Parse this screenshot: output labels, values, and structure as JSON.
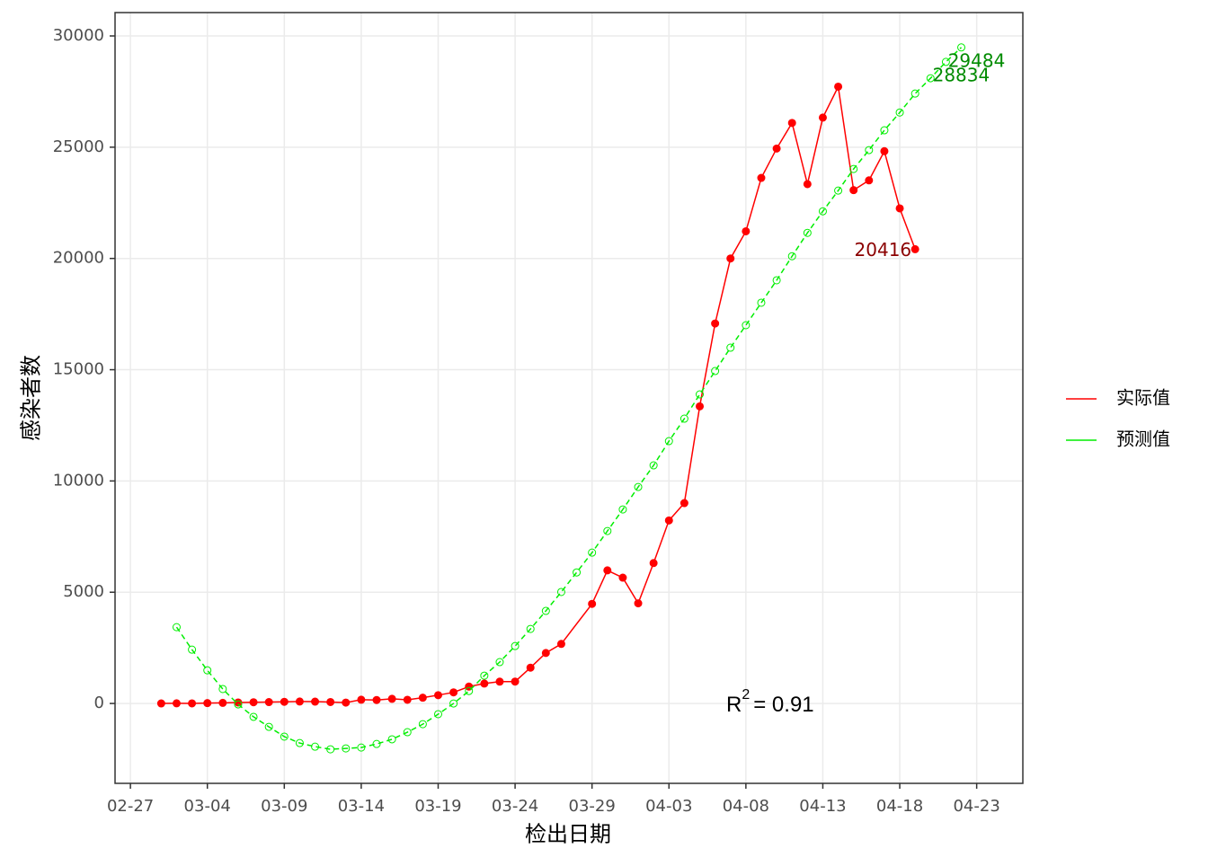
{
  "chart_data": {
    "type": "line",
    "x_label": "检出日期",
    "y_label": "感染者数",
    "xlim": [
      "02-26",
      "04-26"
    ],
    "xticks": [
      "02-27",
      "03-04",
      "03-09",
      "03-14",
      "03-19",
      "03-24",
      "03-29",
      "04-03",
      "04-08",
      "04-13",
      "04-18",
      "04-23"
    ],
    "ylim": [
      -3590,
      31050
    ],
    "yticks": [
      0,
      5000,
      10000,
      15000,
      20000,
      25000,
      30000
    ],
    "grid": true,
    "legend": "right",
    "series": [
      {
        "name": "实际值",
        "color": "#ff0000",
        "label_color": "#8b0000",
        "dashed": false,
        "marker": "filled",
        "x": [
          "03-01",
          "03-02",
          "03-03",
          "03-04",
          "03-05",
          "03-06",
          "03-07",
          "03-08",
          "03-09",
          "03-10",
          "03-11",
          "03-12",
          "03-13",
          "03-14",
          "03-15",
          "03-16",
          "03-17",
          "03-18",
          "03-19",
          "03-20",
          "03-21",
          "03-22",
          "03-23",
          "03-24",
          "03-25",
          "03-26",
          "03-27",
          "03-29",
          "03-30",
          "03-31",
          "04-01",
          "04-02",
          "04-03",
          "04-04",
          "04-05",
          "04-06",
          "04-07",
          "04-08",
          "04-09",
          "04-10",
          "04-11",
          "04-12",
          "04-13",
          "04-14",
          "04-15",
          "04-16",
          "04-17",
          "04-18",
          "04-19"
        ],
        "values": [
          2,
          8,
          5,
          16,
          28,
          45,
          54,
          62,
          76,
          87,
          83,
          65,
          41,
          169,
          157,
          208,
          166,
          259,
          374,
          500,
          758,
          896,
          981,
          983,
          1609,
          2269,
          2676,
          4477,
          5982,
          5653,
          4502,
          6311,
          8226,
          9006,
          13354,
          17077,
          20000,
          21220,
          23620,
          24940,
          26090,
          23340,
          26330,
          27720,
          23070,
          23510,
          24820,
          22250,
          20416
        ],
        "labeled": [
          48
        ]
      },
      {
        "name": "预测值",
        "color": "#00ee00",
        "label_color": "#008b00",
        "dashed": true,
        "marker": "hollow",
        "x": [
          "03-02",
          "03-03",
          "03-04",
          "03-05",
          "03-06",
          "03-07",
          "03-08",
          "03-09",
          "03-10",
          "03-11",
          "03-12",
          "03-13",
          "03-14",
          "03-15",
          "03-16",
          "03-17",
          "03-18",
          "03-19",
          "03-20",
          "03-21",
          "03-22",
          "03-23",
          "03-24",
          "03-25",
          "03-26",
          "03-27",
          "03-28",
          "03-29",
          "03-30",
          "03-31",
          "04-01",
          "04-02",
          "04-03",
          "04-04",
          "04-05",
          "04-06",
          "04-07",
          "04-08",
          "04-09",
          "04-10",
          "04-11",
          "04-12",
          "04-13",
          "04-14",
          "04-15",
          "04-16",
          "04-17",
          "04-18",
          "04-19",
          "04-20",
          "04-21",
          "04-22"
        ],
        "values": [
          3430,
          2420,
          1490,
          650,
          -40,
          -600,
          -1050,
          -1490,
          -1780,
          -1940,
          -2060,
          -2020,
          -1980,
          -1820,
          -1610,
          -1290,
          -930,
          -480,
          0,
          560,
          1250,
          1860,
          2580,
          3350,
          4160,
          5010,
          5890,
          6780,
          7750,
          8720,
          9730,
          10700,
          11790,
          12800,
          13890,
          14940,
          15990,
          17000,
          18010,
          19020,
          20100,
          21150,
          22120,
          23050,
          24020,
          24870,
          25760,
          26560,
          27410,
          28100,
          28834,
          29484
        ],
        "labeled": [
          50,
          51
        ]
      }
    ],
    "annotation": {
      "base": "R",
      "sup": "2",
      "rest": "= 0.91"
    }
  }
}
